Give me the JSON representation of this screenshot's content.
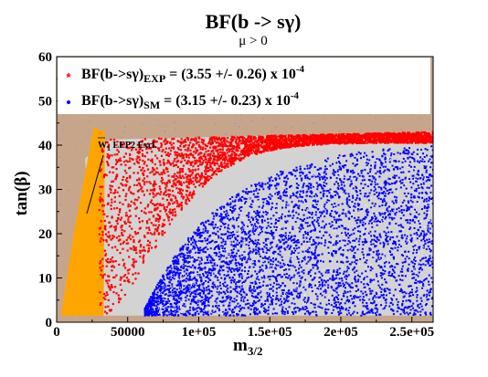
{
  "chart_data": {
    "type": "scatter",
    "title": "BF(b -> sγ)",
    "subtitle": "μ > 0",
    "xlabel": "m",
    "xlabel_sub": "3/2",
    "ylabel": "tan(β)",
    "xlim": [
      0,
      265000
    ],
    "ylim": [
      0,
      60
    ],
    "xticks": [
      0,
      50000,
      100000,
      150000,
      200000,
      250000
    ],
    "xtick_labels": [
      "0",
      "50000",
      "1e+05",
      "1.5e+05",
      "2e+05",
      "2.5e+05"
    ],
    "yticks": [
      0,
      10,
      20,
      30,
      40,
      50,
      60
    ],
    "ytick_labels": [
      "0",
      "10",
      "20",
      "30",
      "40",
      "50",
      "60"
    ],
    "grid": false,
    "legend_position": "top-left",
    "series": [
      {
        "name": "BF(b->sγ)EXP = (3.55 +/- 0.26) x 10-4",
        "label_main": "BF(b->sγ)",
        "label_sub": "EXP",
        "label_rest": " = (3.55 +/- 0.26) x 10",
        "label_sup": "-4",
        "marker": "star",
        "color": "#ff0000"
      },
      {
        "name": "BF(b->sγ)SM = (3.15 +/- 0.23) x 10-4",
        "label_main": "BF(b->sγ)",
        "label_sub": "SM",
        "label_rest": " = (3.15 +/- 0.23) x 10",
        "label_sup": "-4",
        "marker": "dot",
        "color": "#0000ff"
      }
    ],
    "regions": [
      {
        "name": "excluded-background",
        "color": "#c6a58a"
      },
      {
        "name": "LEP2 excluded",
        "color": "#ffa500"
      },
      {
        "name": "allowed-unmatched",
        "color": "#d3d3d3"
      }
    ],
    "annotation": {
      "text_main": "W",
      "text_sub": "1",
      "text_rest": " LEP2 Excl."
    }
  }
}
